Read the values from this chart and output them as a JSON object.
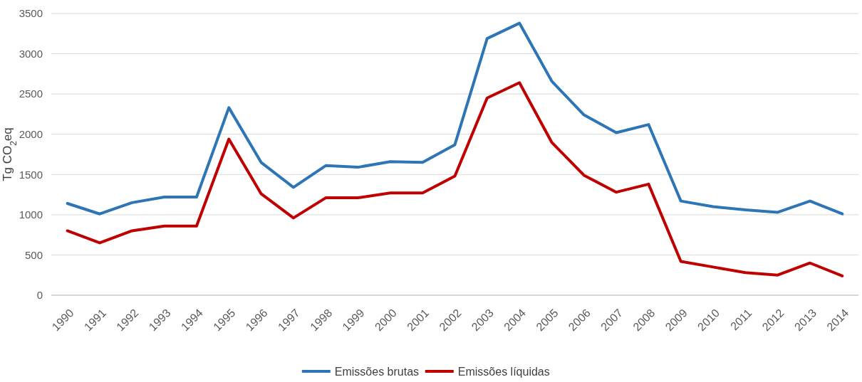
{
  "chart_data": {
    "type": "line",
    "ylabel": "Tg CO$_{2}$eq",
    "categories": [
      "1990",
      "1991",
      "1992",
      "1993",
      "1994",
      "1995",
      "1996",
      "1997",
      "1998",
      "1999",
      "2000",
      "2001",
      "2002",
      "2003",
      "2004",
      "2005",
      "2006",
      "2007",
      "2008",
      "2009",
      "2010",
      "2011",
      "2012",
      "2013",
      "2014"
    ],
    "series": [
      {
        "name": "Emissões brutas",
        "color": "#2e75b6",
        "values": [
          1140,
          1010,
          1150,
          1220,
          1220,
          2330,
          1650,
          1340,
          1610,
          1590,
          1660,
          1650,
          1870,
          3190,
          3380,
          2660,
          2240,
          2020,
          2120,
          1170,
          1100,
          1060,
          1030,
          1170,
          1010
        ]
      },
      {
        "name": "Emissões líquidas",
        "color": "#c00000",
        "values": [
          800,
          650,
          800,
          860,
          860,
          1940,
          1260,
          960,
          1210,
          1210,
          1270,
          1270,
          1480,
          2450,
          2640,
          1900,
          1490,
          1280,
          1380,
          420,
          350,
          280,
          250,
          400,
          240
        ]
      }
    ],
    "ylim": [
      0,
      3500
    ],
    "yticks": [
      0,
      500,
      1000,
      1500,
      2000,
      2500,
      3000,
      3500
    ],
    "grid": "y",
    "legend": "bottom",
    "marker": "none",
    "line_style": "solid"
  }
}
